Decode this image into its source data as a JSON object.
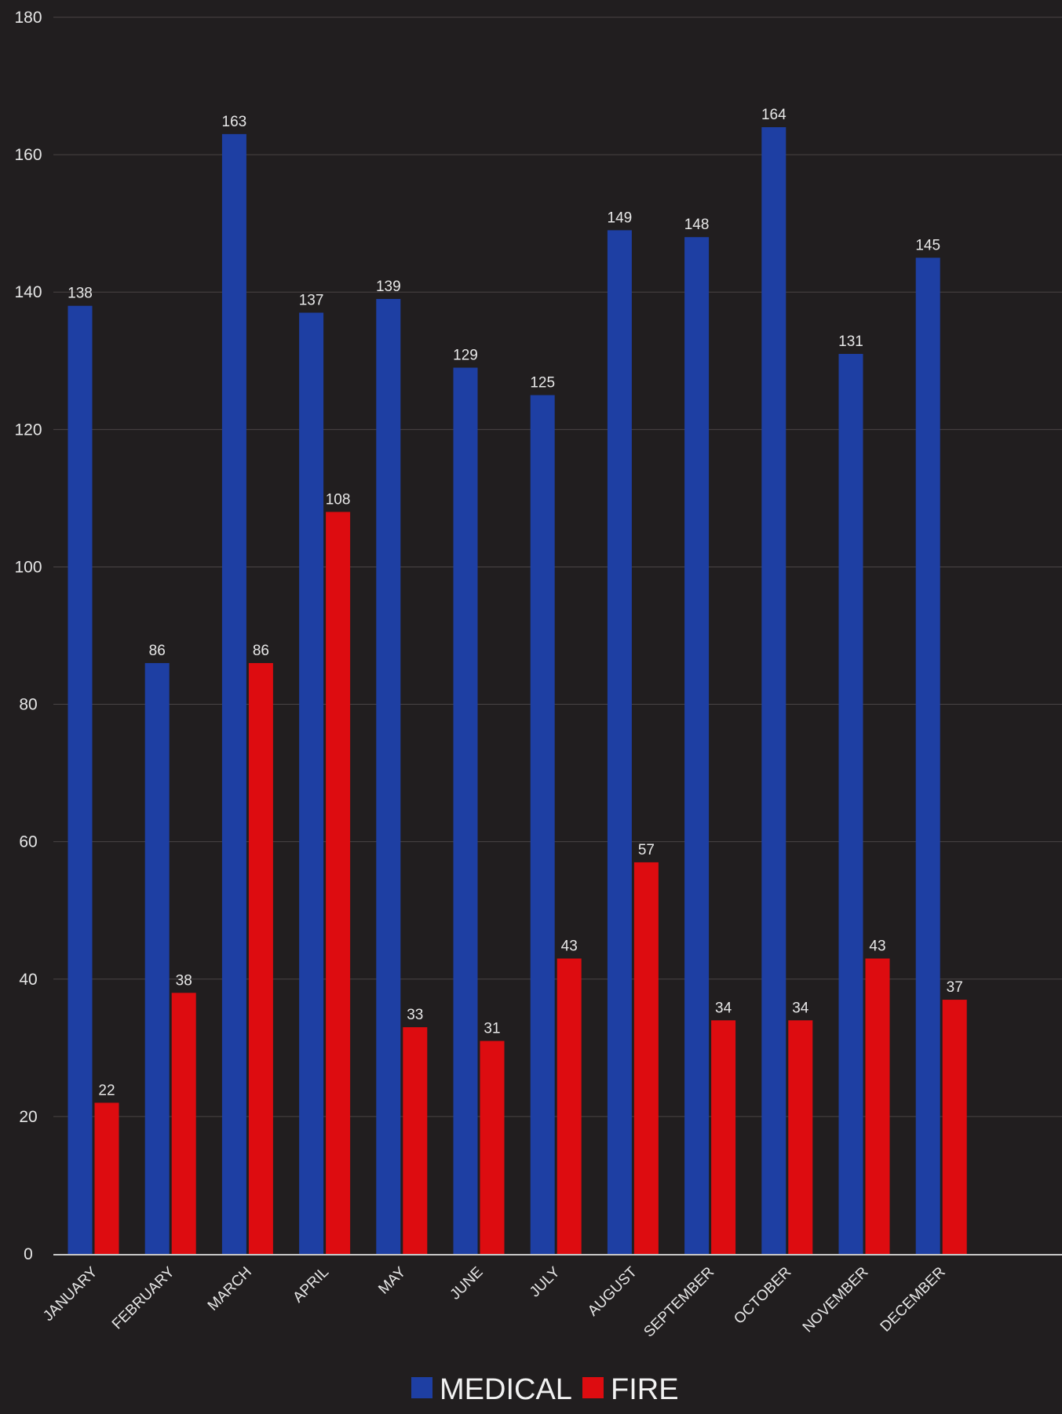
{
  "chart_data": {
    "type": "bar",
    "categories": [
      "JANUARY",
      "FEBRUARY",
      "MARCH",
      "APRIL",
      "MAY",
      "JUNE",
      "JULY",
      "AUGUST",
      "SEPTEMBER",
      "OCTOBER",
      "NOVEMBER",
      "DECEMBER"
    ],
    "series": [
      {
        "name": "MEDICAL",
        "color": "#1e3fa3",
        "values": [
          138,
          86,
          163,
          137,
          139,
          129,
          125,
          149,
          148,
          164,
          131,
          145
        ]
      },
      {
        "name": "FIRE",
        "color": "#dd0c10",
        "values": [
          22,
          38,
          86,
          108,
          33,
          31,
          43,
          57,
          34,
          34,
          43,
          37
        ]
      }
    ],
    "ylim": [
      0,
      180
    ],
    "yticks": [
      0,
      20,
      40,
      60,
      80,
      100,
      120,
      140,
      160,
      180
    ],
    "grid": true,
    "legend": "bottom-center",
    "data_labels": true
  }
}
